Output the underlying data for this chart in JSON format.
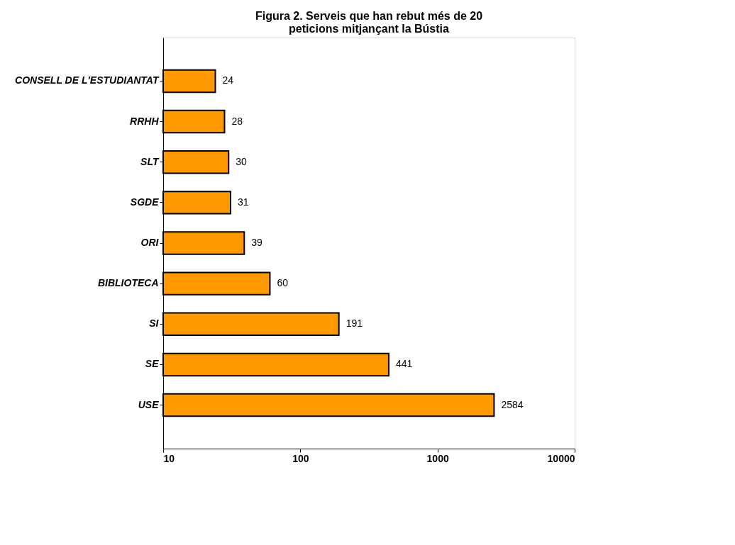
{
  "chart_data": {
    "type": "bar",
    "orientation": "horizontal",
    "title": "Figura 2. Serveis que han rebut més de 20 peticions mitjançant la Bústia",
    "categories": [
      "CONSELL DE L'ESTUDIANTAT",
      "RRHH",
      "SLT",
      "SGDE",
      "ORI",
      "BIBLIOTECA",
      "SI",
      "SE",
      "USE"
    ],
    "values": [
      24,
      28,
      30,
      31,
      39,
      60,
      191,
      441,
      2584
    ],
    "color": "#ff9900",
    "log": "x",
    "xlim": [
      10,
      10000
    ],
    "xticks": [
      10,
      100,
      1000,
      10000
    ],
    "grid": false,
    "data_labels": true
  }
}
